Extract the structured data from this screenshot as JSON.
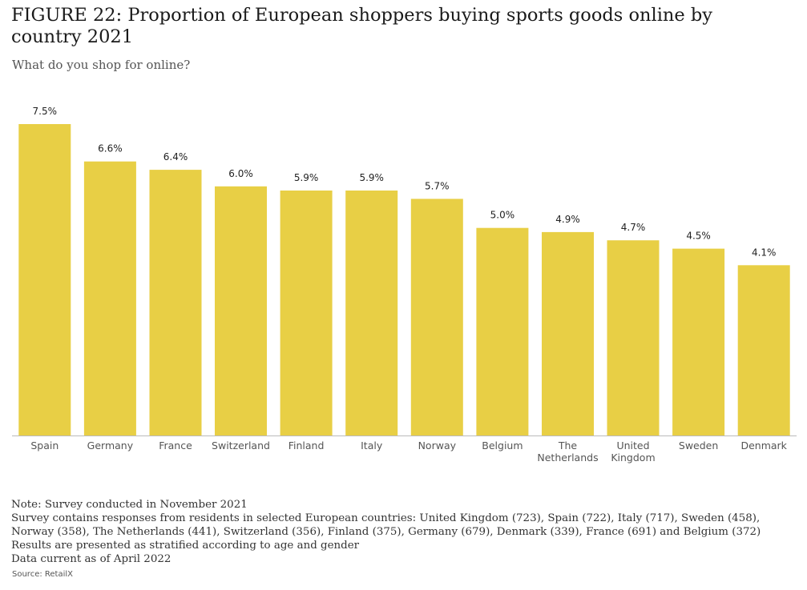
{
  "title": "FIGURE 22: Proportion of European shoppers buying sports goods online by country 2021",
  "subtitle": "What do you shop for online?",
  "notes": [
    "Note: Survey conducted in November 2021",
    "Survey contains responses from residents in selected European countries: United Kingdom (723), Spain (722), Italy (717), Sweden (458),",
    "Norway (358), The Netherlands (441), Switzerland (356), Finland (375), Germany (679), Denmark (339), France (691) and Belgium (372)",
    "Results are presented as stratified according to age and gender",
    "Data current as of April 2022"
  ],
  "source": "Source: RetailX",
  "colors": {
    "bar": "#e8cf45",
    "axis": "#bbbbbb"
  },
  "chart_data": {
    "type": "bar",
    "categories": [
      "Spain",
      "Germany",
      "France",
      "Switzerland",
      "Finland",
      "Italy",
      "Norway",
      "Belgium",
      "The Netherlands",
      "United Kingdom",
      "Sweden",
      "Denmark"
    ],
    "values": [
      7.5,
      6.6,
      6.4,
      6.0,
      5.9,
      5.9,
      5.7,
      5.0,
      4.9,
      4.7,
      4.5,
      4.1
    ],
    "data_labels": [
      "7.5%",
      "6.6%",
      "6.4%",
      "6.0%",
      "5.9%",
      "5.9%",
      "5.7%",
      "5.0%",
      "4.9%",
      "4.7%",
      "4.5%",
      "4.1%"
    ],
    "ylim": [
      0,
      7.5
    ],
    "grid": false,
    "legend": "none"
  }
}
